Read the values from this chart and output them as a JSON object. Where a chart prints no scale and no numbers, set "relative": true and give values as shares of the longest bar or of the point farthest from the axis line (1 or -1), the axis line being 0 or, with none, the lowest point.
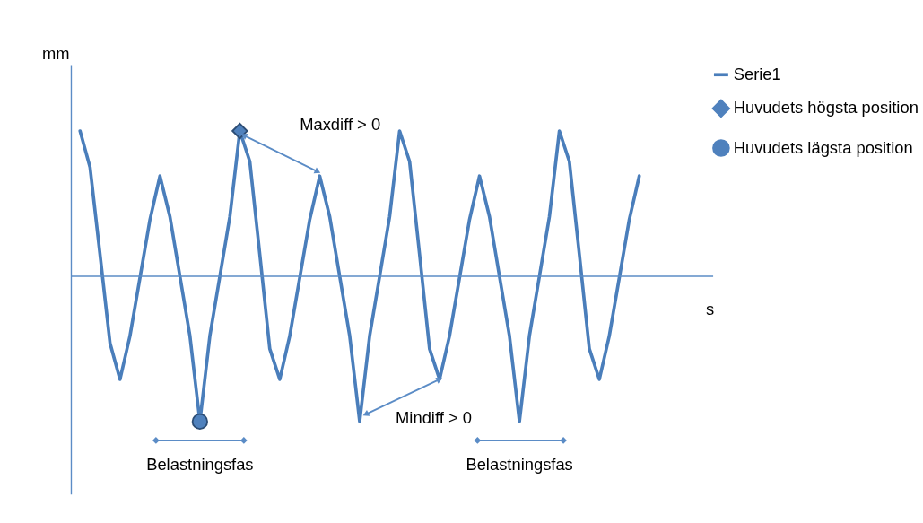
{
  "chart_data": {
    "type": "line",
    "relative": true,
    "xlabel": "s",
    "ylabel": "mm",
    "categories": [
      null,
      null,
      null,
      null,
      null,
      null,
      null,
      null,
      null,
      null,
      null,
      null,
      null,
      null,
      null,
      null,
      null,
      null,
      null,
      null,
      null,
      null,
      null,
      null,
      null,
      null,
      null,
      null,
      null,
      null,
      null,
      null,
      null,
      null,
      null,
      null,
      null,
      null,
      null,
      null,
      null,
      null,
      null,
      null,
      null,
      null,
      null,
      null,
      null,
      null,
      null,
      null,
      null,
      null,
      null,
      null,
      null
    ],
    "series": [
      {
        "name": "Serie1",
        "color": "#4a7ebb",
        "values": [
          1,
          0.75,
          0.15,
          -0.46,
          -0.71,
          -0.41,
          -0.01,
          0.39,
          0.69,
          0.41,
          0.0,
          -0.41,
          -1,
          -0.41,
          0.0,
          0.41,
          1,
          0.79,
          0.15,
          -0.5,
          -0.71,
          -0.41,
          -0.01,
          0.39,
          0.69,
          0.41,
          0.0,
          -0.41,
          -1,
          -0.41,
          0.0,
          0.41,
          1,
          0.79,
          0.15,
          -0.5,
          -0.71,
          -0.41,
          -0.01,
          0.39,
          0.69,
          0.41,
          0.0,
          -0.41,
          -1,
          -0.41,
          0.0,
          0.41,
          1,
          0.79,
          0.15,
          -0.5,
          -0.71,
          -0.41,
          -0.01,
          0.39,
          0.69
        ]
      },
      {
        "name": "Huvudets högsta position",
        "type": "line",
        "marker": "diamond",
        "color": "#4f81bd",
        "values": [
          null,
          null,
          null,
          null,
          null,
          null,
          null,
          null,
          null,
          null,
          null,
          null,
          null,
          null,
          null,
          null,
          1,
          null,
          null,
          null,
          null,
          null,
          null,
          null,
          null,
          null,
          null,
          null,
          null,
          null,
          null,
          null,
          null,
          null,
          null,
          null,
          null,
          null,
          null,
          null,
          null,
          null,
          null,
          null,
          null,
          null,
          null,
          null,
          null,
          null,
          null,
          null,
          null,
          null,
          null,
          null,
          null
        ]
      },
      {
        "name": "Huvudets lägsta position",
        "type": "line",
        "marker": "circle",
        "color": "#4f81bd",
        "values": [
          null,
          null,
          null,
          null,
          null,
          null,
          null,
          null,
          null,
          null,
          null,
          null,
          -1,
          null,
          null,
          null,
          null,
          null,
          null,
          null,
          null,
          null,
          null,
          null,
          null,
          null,
          null,
          null,
          null,
          null,
          null,
          null,
          null,
          null,
          null,
          null,
          null,
          null,
          null,
          null,
          null,
          null,
          null,
          null,
          null,
          null,
          null,
          null,
          null,
          null,
          null,
          null,
          null,
          null,
          null,
          null,
          null
        ]
      }
    ],
    "annotations": [
      "Maxdiff > 0",
      "Mindiff > 0",
      "Belastningsfas",
      "Belastningsfas"
    ],
    "ref_lines": [
      {
        "axis": "y",
        "value": 0,
        "color": "#5b8cc6"
      }
    ],
    "legend": "right",
    "grid": false,
    "tick_labels": false
  }
}
